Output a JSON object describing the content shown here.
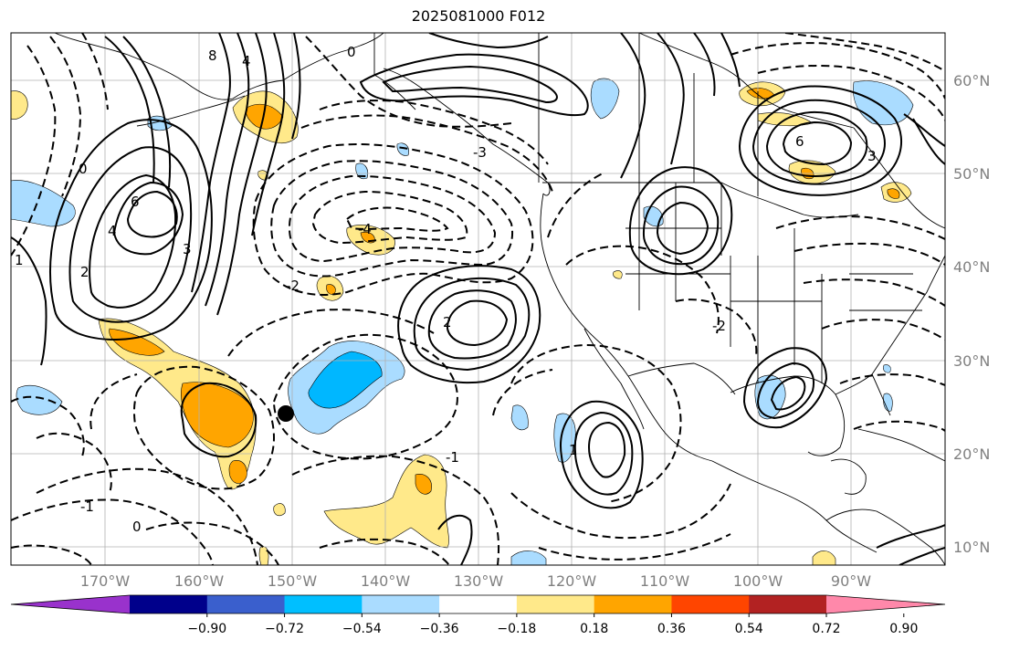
{
  "title": "2025081000 F012",
  "colors": {
    "land_line": "#000000",
    "grid": "#b0b0b0",
    "fill_pos1": "#ffe98a",
    "fill_pos2": "#ffa500",
    "fill_neg1": "#aadcff",
    "fill_neg2": "#00b7ff",
    "marker": "#000000"
  },
  "lat_labels": [
    "60°N",
    "50°N",
    "40°N",
    "30°N",
    "20°N",
    "10°N"
  ],
  "lon_labels": [
    "170°W",
    "160°W",
    "150°W",
    "140°W",
    "130°W",
    "120°W",
    "110°W",
    "100°W",
    "90°W"
  ],
  "colorbar": {
    "colors": [
      "#9932cc",
      "#00008b",
      "#3a5fcd",
      "#00bfff",
      "#aadcff",
      "#ffffff",
      "#ffe98a",
      "#ffa500",
      "#ff4500",
      "#b22222",
      "#ff88aa"
    ],
    "tick_labels": [
      "−0.90",
      "−0.72",
      "−0.54",
      "−0.36",
      "−0.18",
      "0.18",
      "0.36",
      "0.54",
      "0.72",
      "0.90"
    ]
  },
  "contour_labels": [
    "6",
    "4",
    "3",
    "2",
    "1",
    "0",
    "-1",
    "-2",
    "-3",
    "-4",
    "8",
    "0",
    "2",
    "4",
    "6",
    "3",
    "1",
    "0",
    "-1",
    "-2"
  ]
}
